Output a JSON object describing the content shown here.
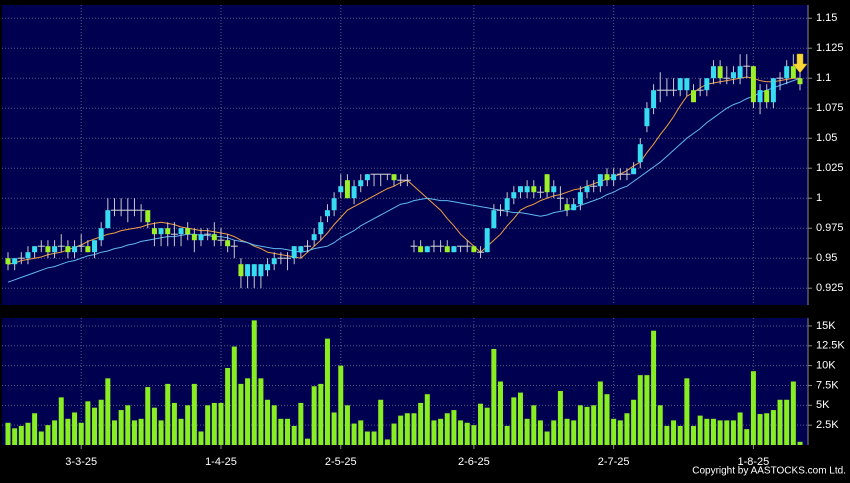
{
  "chart_data": {
    "type": "candlestick",
    "categories": [
      null,
      null,
      null,
      null,
      null,
      null,
      null,
      null,
      null,
      null,
      null,
      "3-3-25",
      null,
      null,
      null,
      null,
      null,
      null,
      null,
      null,
      null,
      null,
      null,
      null,
      null,
      null,
      null,
      null,
      null,
      null,
      null,
      null,
      "1-4-25",
      null,
      null,
      null,
      null,
      null,
      null,
      null,
      null,
      null,
      null,
      null,
      null,
      null,
      null,
      null,
      null,
      null,
      "2-5-25",
      null,
      null,
      null,
      null,
      null,
      null,
      null,
      null,
      null,
      null,
      null,
      null,
      null,
      null,
      null,
      null,
      null,
      null,
      null,
      "2-6-25",
      null,
      null,
      null,
      null,
      null,
      null,
      null,
      null,
      null,
      null,
      null,
      null,
      null,
      null,
      null,
      null,
      null,
      null,
      null,
      null,
      "2-7-25",
      null,
      null,
      null,
      null,
      null,
      null,
      null,
      null,
      null,
      null,
      null,
      null,
      null,
      null,
      null,
      null,
      null,
      null,
      null,
      null,
      "1-8-25",
      null,
      null,
      null,
      null,
      null,
      null,
      null
    ],
    "ohlc": [
      [
        0.95,
        0.955,
        0.94,
        0.945
      ],
      [
        0.945,
        0.95,
        0.94,
        0.95
      ],
      [
        0.95,
        0.955,
        0.945,
        0.95
      ],
      [
        0.95,
        0.96,
        0.945,
        0.955
      ],
      [
        0.955,
        0.96,
        0.95,
        0.96
      ],
      [
        0.96,
        0.965,
        0.955,
        0.96
      ],
      [
        0.96,
        0.965,
        0.95,
        0.955
      ],
      [
        0.955,
        0.965,
        0.95,
        0.96
      ],
      [
        0.96,
        0.97,
        0.955,
        0.96
      ],
      [
        0.96,
        0.965,
        0.95,
        0.955
      ],
      [
        0.955,
        0.965,
        0.95,
        0.96
      ],
      [
        0.96,
        0.97,
        0.955,
        0.96
      ],
      [
        0.96,
        0.965,
        0.955,
        0.955
      ],
      [
        0.955,
        0.965,
        0.95,
        0.965
      ],
      [
        0.965,
        0.98,
        0.96,
        0.975
      ],
      [
        0.975,
        1.0,
        0.975,
        0.99
      ],
      [
        0.99,
        1.0,
        0.985,
        0.99
      ],
      [
        0.99,
        1.0,
        0.985,
        0.99
      ],
      [
        0.99,
        1.0,
        0.98,
        0.99
      ],
      [
        0.99,
        1.0,
        0.985,
        0.99
      ],
      [
        0.99,
        0.995,
        0.98,
        0.99
      ],
      [
        0.99,
        0.99,
        0.975,
        0.98
      ],
      [
        0.975,
        0.98,
        0.96,
        0.97
      ],
      [
        0.97,
        0.975,
        0.96,
        0.975
      ],
      [
        0.975,
        0.98,
        0.96,
        0.97
      ],
      [
        0.97,
        0.98,
        0.96,
        0.97
      ],
      [
        0.97,
        0.975,
        0.96,
        0.975
      ],
      [
        0.975,
        0.98,
        0.965,
        0.97
      ],
      [
        0.97,
        0.975,
        0.955,
        0.965
      ],
      [
        0.965,
        0.975,
        0.96,
        0.97
      ],
      [
        0.97,
        0.975,
        0.965,
        0.97
      ],
      [
        0.97,
        0.98,
        0.96,
        0.965
      ],
      [
        0.965,
        0.975,
        0.96,
        0.965
      ],
      [
        0.965,
        0.97,
        0.955,
        0.96
      ],
      [
        0.96,
        0.965,
        0.95,
        0.96
      ],
      [
        0.945,
        0.95,
        0.925,
        0.935
      ],
      [
        0.935,
        0.945,
        0.925,
        0.945
      ],
      [
        0.935,
        0.945,
        0.925,
        0.945
      ],
      [
        0.935,
        0.945,
        0.925,
        0.945
      ],
      [
        0.94,
        0.95,
        0.935,
        0.945
      ],
      [
        0.945,
        0.955,
        0.94,
        0.95
      ],
      [
        0.95,
        0.955,
        0.945,
        0.95
      ],
      [
        0.95,
        0.955,
        0.94,
        0.95
      ],
      [
        0.95,
        0.96,
        0.945,
        0.96
      ],
      [
        0.955,
        0.96,
        0.95,
        0.96
      ],
      [
        0.96,
        0.965,
        0.955,
        0.96
      ],
      [
        0.965,
        0.975,
        0.96,
        0.97
      ],
      [
        0.97,
        0.985,
        0.965,
        0.98
      ],
      [
        0.985,
        0.995,
        0.98,
        0.99
      ],
      [
        0.99,
        1.005,
        0.985,
        1.0
      ],
      [
        1.005,
        1.02,
        1.0,
        1.01
      ],
      [
        1.015,
        1.02,
        1.0,
        1.0
      ],
      [
        1.0,
        1.015,
        0.995,
        1.01
      ],
      [
        1.01,
        1.02,
        1.005,
        1.015
      ],
      [
        1.015,
        1.02,
        1.01,
        1.02
      ],
      [
        1.02,
        1.02,
        1.01,
        1.02
      ],
      [
        1.02,
        1.02,
        1.01,
        1.02
      ],
      [
        1.02,
        1.02,
        1.015,
        1.02
      ],
      [
        1.02,
        1.02,
        1.01,
        1.015
      ],
      [
        1.015,
        1.02,
        1.01,
        1.015
      ],
      [
        1.015,
        1.02,
        1.01,
        1.015
      ],
      [
        0.96,
        0.965,
        0.955,
        0.96
      ],
      [
        0.96,
        0.965,
        0.955,
        0.955
      ],
      [
        0.955,
        0.96,
        0.955,
        0.96
      ],
      [
        0.96,
        0.965,
        0.955,
        0.96
      ],
      [
        0.96,
        0.965,
        0.955,
        0.96
      ],
      [
        0.96,
        0.965,
        0.955,
        0.955
      ],
      [
        0.955,
        0.96,
        0.955,
        0.96
      ],
      [
        0.96,
        0.96,
        0.955,
        0.96
      ],
      [
        0.96,
        0.965,
        0.955,
        0.96
      ],
      [
        0.96,
        0.96,
        0.955,
        0.955
      ],
      [
        0.955,
        0.96,
        0.95,
        0.955
      ],
      [
        0.955,
        0.975,
        0.955,
        0.975
      ],
      [
        0.975,
        0.995,
        0.975,
        0.99
      ],
      [
        0.99,
        0.995,
        0.985,
        0.99
      ],
      [
        0.99,
        1.005,
        0.985,
        1.0
      ],
      [
        1.0,
        1.01,
        0.995,
        1.005
      ],
      [
        1.005,
        1.01,
        1.0,
        1.01
      ],
      [
        1.005,
        1.015,
        1.0,
        1.01
      ],
      [
        1.01,
        1.015,
        1.0,
        1.005
      ],
      [
        1.005,
        1.01,
        1.0,
        1.005
      ],
      [
        1.02,
        1.02,
        1.0,
        1.005
      ],
      [
        1.005,
        1.015,
        1.0,
        1.01
      ],
      [
        1.0,
        1.01,
        0.99,
        1.0
      ],
      [
        0.995,
        1.0,
        0.985,
        0.99
      ],
      [
        0.99,
        1.0,
        0.99,
        0.995
      ],
      [
        0.995,
        1.01,
        0.99,
        1.005
      ],
      [
        1.005,
        1.015,
        1.0,
        1.01
      ],
      [
        1.01,
        1.015,
        1.005,
        1.01
      ],
      [
        1.01,
        1.02,
        1.005,
        1.02
      ],
      [
        1.02,
        1.025,
        1.01,
        1.015
      ],
      [
        1.015,
        1.025,
        1.01,
        1.02
      ],
      [
        1.02,
        1.025,
        1.015,
        1.02
      ],
      [
        1.02,
        1.025,
        1.015,
        1.02
      ],
      [
        1.02,
        1.03,
        1.02,
        1.025
      ],
      [
        1.03,
        1.05,
        1.025,
        1.045
      ],
      [
        1.06,
        1.08,
        1.055,
        1.075
      ],
      [
        1.075,
        1.095,
        1.07,
        1.09
      ],
      [
        1.09,
        1.105,
        1.08,
        1.09
      ],
      [
        1.09,
        1.1,
        1.085,
        1.09
      ],
      [
        1.09,
        1.1,
        1.085,
        1.09
      ],
      [
        1.09,
        1.1,
        1.085,
        1.1
      ],
      [
        1.09,
        1.1,
        1.085,
        1.1
      ],
      [
        1.09,
        1.095,
        1.08,
        1.08
      ],
      [
        1.09,
        1.1,
        1.085,
        1.09
      ],
      [
        1.09,
        1.1,
        1.085,
        1.1
      ],
      [
        1.1,
        1.115,
        1.095,
        1.11
      ],
      [
        1.11,
        1.115,
        1.095,
        1.1
      ],
      [
        1.1,
        1.11,
        1.095,
        1.1
      ],
      [
        1.1,
        1.11,
        1.095,
        1.105
      ],
      [
        1.1,
        1.12,
        1.095,
        1.11
      ],
      [
        1.11,
        1.12,
        1.1,
        1.11
      ],
      [
        1.11,
        1.11,
        1.075,
        1.08
      ],
      [
        1.08,
        1.095,
        1.07,
        1.09
      ],
      [
        1.09,
        1.095,
        1.075,
        1.08
      ],
      [
        1.08,
        1.1,
        1.075,
        1.1
      ],
      [
        1.1,
        1.105,
        1.09,
        1.1
      ],
      [
        1.1,
        1.115,
        1.095,
        1.11
      ],
      [
        1.11,
        1.12,
        1.1,
        1.1
      ],
      [
        1.1,
        1.11,
        1.09,
        1.095
      ]
    ],
    "up_color": "#38dcf0",
    "down_color": "#9cf028",
    "flat_color": "#d8d8d8",
    "ylim": [
      0.911,
      1.161
    ],
    "yticks": [
      0.925,
      0.95,
      0.975,
      1,
      1.025,
      1.05,
      1.075,
      1.1,
      1.125,
      1.15
    ],
    "grid": true,
    "moving_averages": [
      {
        "color": "#f0a040",
        "values": [
          0.945,
          0.946,
          0.948,
          0.949,
          0.95,
          0.951,
          0.953,
          0.954,
          0.955,
          0.957,
          0.959,
          0.961,
          0.964,
          0.966,
          0.968,
          0.97,
          0.971,
          0.973,
          0.974,
          0.975,
          0.976,
          0.978,
          0.979,
          0.98,
          0.979,
          0.978,
          0.976,
          0.975,
          0.974,
          0.973,
          0.973,
          0.972,
          0.971,
          0.97,
          0.968,
          0.965,
          0.963,
          0.96,
          0.958,
          0.955,
          0.954,
          0.953,
          0.952,
          0.951,
          0.95,
          0.955,
          0.96,
          0.965,
          0.971,
          0.978,
          0.984,
          0.99,
          0.993,
          0.996,
          0.999,
          1.002,
          1.005,
          1.008,
          1.01,
          1.013,
          1.015,
          1.01,
          1.005,
          1.0,
          0.995,
          0.99,
          0.983,
          0.977,
          0.97,
          0.965,
          0.96,
          0.955,
          0.96,
          0.965,
          0.97,
          0.977,
          0.983,
          0.99,
          0.993,
          0.995,
          0.998,
          1.0,
          1.002,
          1.003,
          1.005,
          1.007,
          1.008,
          1.01,
          1.012,
          1.014,
          1.016,
          1.018,
          1.02,
          1.023,
          1.027,
          1.03,
          1.038,
          1.045,
          1.053,
          1.06,
          1.068,
          1.077,
          1.085,
          1.088,
          1.092,
          1.095,
          1.096,
          1.097,
          1.098,
          1.099,
          1.1,
          1.101,
          1.1,
          1.098,
          1.097,
          1.097,
          1.098,
          1.099,
          1.1,
          1.1
        ]
      },
      {
        "color": "#60b8f0",
        "values": [
          0.93,
          0.932,
          0.934,
          0.936,
          0.938,
          0.94,
          0.942,
          0.943,
          0.945,
          0.947,
          0.948,
          0.95,
          0.952,
          0.953,
          0.955,
          0.956,
          0.958,
          0.959,
          0.961,
          0.962,
          0.964,
          0.965,
          0.966,
          0.967,
          0.968,
          0.968,
          0.969,
          0.97,
          0.97,
          0.969,
          0.969,
          0.968,
          0.968,
          0.967,
          0.965,
          0.964,
          0.963,
          0.961,
          0.96,
          0.959,
          0.958,
          0.958,
          0.957,
          0.956,
          0.955,
          0.956,
          0.958,
          0.959,
          0.96,
          0.963,
          0.967,
          0.97,
          0.973,
          0.977,
          0.98,
          0.983,
          0.986,
          0.989,
          0.992,
          0.995,
          0.996,
          0.998,
          0.999,
          1.0,
          0.999,
          0.998,
          0.998,
          0.997,
          0.996,
          0.995,
          0.994,
          0.993,
          0.992,
          0.991,
          0.99,
          0.989,
          0.988,
          0.988,
          0.987,
          0.986,
          0.985,
          0.986,
          0.988,
          0.989,
          0.99,
          0.992,
          0.994,
          0.996,
          0.998,
          1.0,
          1.003,
          1.005,
          1.008,
          1.01,
          1.014,
          1.018,
          1.022,
          1.026,
          1.03,
          1.035,
          1.04,
          1.045,
          1.05,
          1.054,
          1.058,
          1.063,
          1.067,
          1.071,
          1.075,
          1.078,
          1.08,
          1.083,
          1.085,
          1.088,
          1.09,
          1.092,
          1.094,
          1.096,
          1.098,
          1.1
        ]
      }
    ],
    "volume": {
      "type": "bar",
      "color": "#88ee22",
      "values": [
        2800,
        2100,
        2400,
        2800,
        4000,
        1700,
        2500,
        3100,
        6000,
        3300,
        4100,
        2800,
        5500,
        4700,
        5700,
        8400,
        3100,
        4400,
        5000,
        3100,
        3300,
        7300,
        4700,
        3100,
        7700,
        5300,
        3300,
        5000,
        7700,
        1700,
        5000,
        5300,
        5300,
        9700,
        12400,
        7700,
        8400,
        15700,
        8400,
        5700,
        5000,
        3300,
        3300,
        2400,
        5300,
        800,
        7400,
        7700,
        13400,
        4100,
        10000,
        5000,
        2700,
        3100,
        1700,
        1700,
        5700,
        700,
        2700,
        3700,
        4000,
        4000,
        5300,
        6400,
        3100,
        3300,
        4000,
        4400,
        3100,
        2800,
        2500,
        5200,
        4700,
        12100,
        8000,
        2400,
        6000,
        6600,
        3300,
        5000,
        3100,
        1700,
        3100,
        6800,
        3300,
        3100,
        5000,
        4800,
        5000,
        8000,
        6400,
        3300,
        3100,
        4000,
        5700,
        8800,
        8800,
        14400,
        5000,
        2400,
        3100,
        2400,
        8400,
        2400,
        3700,
        3300,
        3300,
        3100,
        3100,
        3100,
        4100,
        2000,
        9300,
        3900,
        4000,
        4400,
        5700,
        5700,
        8000,
        400
      ],
      "ylim": [
        0,
        16000
      ],
      "yticks": [
        {
          "value": 2500,
          "label": "2.5K"
        },
        {
          "value": 5000,
          "label": "5K"
        },
        {
          "value": 7500,
          "label": "7.5K"
        },
        {
          "value": 10000,
          "label": "10K"
        },
        {
          "value": 12500,
          "label": "12.5K"
        },
        {
          "value": 15000,
          "label": "15K"
        }
      ]
    },
    "copyright": "Copyright by AASTOCKS.com Ltd."
  }
}
